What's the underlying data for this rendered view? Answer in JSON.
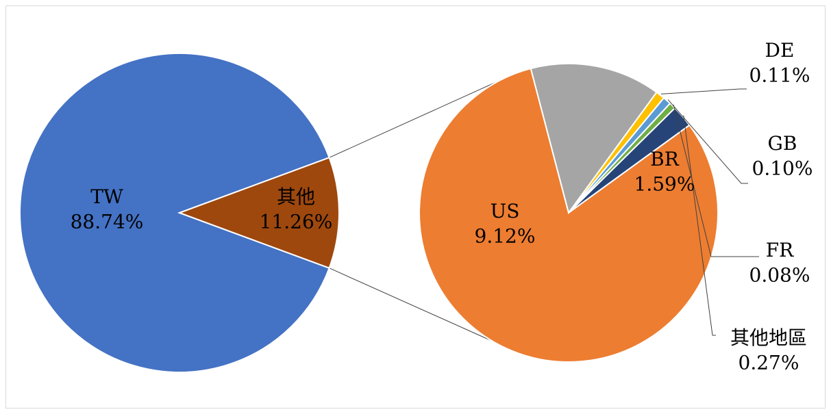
{
  "chart_data": [
    {
      "type": "pie",
      "slices": [
        {
          "label": "TW",
          "value": 88.74,
          "value_label": "88.74%",
          "color": "#4472C4"
        },
        {
          "label": "其他",
          "value": 11.26,
          "value_label": "11.26%",
          "color": "#9E480E"
        }
      ]
    },
    {
      "type": "pie",
      "slices": [
        {
          "label": "US",
          "value": 9.12,
          "value_label": "9.12%",
          "color": "#ED7D31"
        },
        {
          "label": "BR",
          "value": 1.59,
          "value_label": "1.59%",
          "color": "#A5A5A5"
        },
        {
          "label": "DE",
          "value": 0.11,
          "value_label": "0.11%",
          "color": "#FFC000"
        },
        {
          "label": "GB",
          "value": 0.1,
          "value_label": "0.10%",
          "color": "#5B9BD5"
        },
        {
          "label": "FR",
          "value": 0.08,
          "value_label": "0.08%",
          "color": "#70AD47"
        },
        {
          "label": "其他地區",
          "value": 0.27,
          "value_label": "0.27%",
          "color": "#264478"
        }
      ]
    }
  ]
}
